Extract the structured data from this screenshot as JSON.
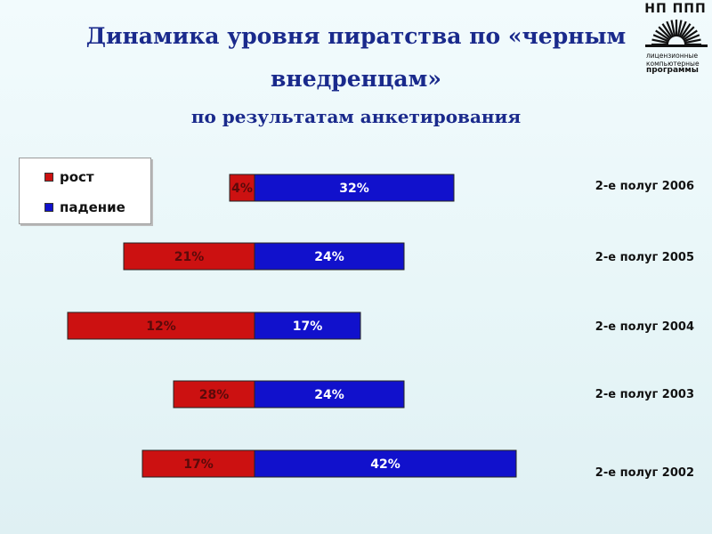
{
  "title_line1": "Динамика уровня пиратства по «черным",
  "title_line2": "внедренцам»",
  "subtitle": "по результатам анкетирования",
  "logo": {
    "name": "НП ППП",
    "line1": "лицензионные",
    "line2": "компьютерные",
    "line3": "программы"
  },
  "legend": {
    "items": [
      {
        "label": "рост",
        "color": "#cc1111"
      },
      {
        "label": "падение",
        "color": "#1111cc"
      }
    ]
  },
  "chart_data": {
    "type": "bar",
    "orientation": "horizontal",
    "layout": "diverging",
    "categories": [
      "2-е полуг 2006",
      "2-е полуг 2005",
      "2-е полуг 2004",
      "2-е полуг 2003",
      "2-е полуг 2002"
    ],
    "series": [
      {
        "name": "рост",
        "color": "#cc1111",
        "values": [
          4,
          21,
          12,
          28,
          17
        ],
        "labels": [
          "4%",
          "21%",
          "12%",
          "28%",
          "17%"
        ],
        "bar_extent": [
          4,
          21,
          30,
          13,
          18
        ]
      },
      {
        "name": "падение",
        "color": "#1111cc",
        "values": [
          32,
          24,
          17,
          24,
          42
        ],
        "labels": [
          "32%",
          "24%",
          "17%",
          "24%",
          "42%"
        ]
      }
    ]
  }
}
